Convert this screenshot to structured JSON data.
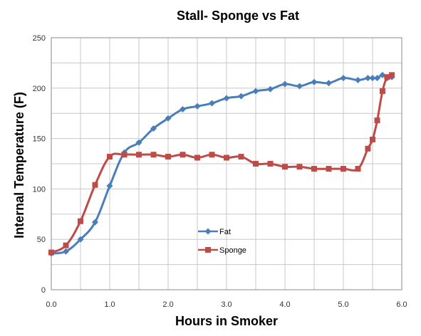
{
  "chart_data": {
    "type": "line",
    "title": "Stall- Sponge vs Fat",
    "xlabel": "Hours in Smoker",
    "ylabel": "Internal Temperature (F)",
    "xlim": [
      0,
      6
    ],
    "ylim": [
      0,
      250
    ],
    "xticks": [
      "0.0",
      "1.0",
      "2.0",
      "3.0",
      "4.0",
      "5.0",
      "6.0"
    ],
    "yticks": [
      "0",
      "50",
      "100",
      "150",
      "200",
      "250"
    ],
    "grid": "vertical and horizontal",
    "legend_position": "lower-center",
    "series": [
      {
        "name": "Fat",
        "color": "#4a7ebb",
        "marker": "diamond",
        "x": [
          0,
          0.25,
          0.5,
          0.75,
          1.0,
          1.25,
          1.5,
          1.75,
          2.0,
          2.25,
          2.5,
          2.75,
          3.0,
          3.25,
          3.5,
          3.75,
          4.0,
          4.25,
          4.5,
          4.75,
          5.0,
          5.25,
          5.42,
          5.5,
          5.58,
          5.67,
          5.75,
          5.83
        ],
        "y": [
          36,
          38,
          50,
          67,
          103,
          136,
          146,
          160,
          170,
          179,
          182,
          185,
          190,
          192,
          197,
          199,
          204,
          202,
          206,
          205,
          210,
          208,
          210,
          210,
          210,
          213,
          210,
          211
        ]
      },
      {
        "name": "Sponge",
        "color": "#be4b48",
        "marker": "square",
        "x": [
          0,
          0.25,
          0.5,
          0.75,
          1.0,
          1.25,
          1.5,
          1.75,
          2.0,
          2.25,
          2.5,
          2.75,
          3.0,
          3.25,
          3.5,
          3.75,
          4.0,
          4.25,
          4.5,
          4.75,
          5.0,
          5.25,
          5.42,
          5.5,
          5.58,
          5.67,
          5.75,
          5.83
        ],
        "y": [
          37,
          44,
          68,
          104,
          132,
          134,
          134,
          134,
          132,
          134,
          131,
          134,
          131,
          132,
          125,
          125,
          122,
          122,
          120,
          120,
          120,
          120,
          140,
          149,
          168,
          197,
          211,
          213
        ]
      }
    ]
  }
}
